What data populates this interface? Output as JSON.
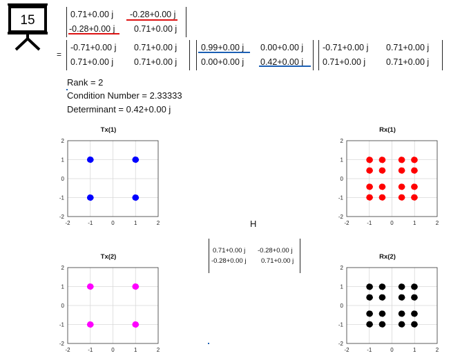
{
  "slide_number": "15",
  "equals": "=",
  "matrix_h": {
    "r1": [
      "0.71+0.00 j",
      "-0.28+0.00 j"
    ],
    "r2": [
      "-0.28+0.00 j",
      "0.71+0.00 j"
    ]
  },
  "matrix_u": {
    "r1": [
      "-0.71+0.00 j",
      "0.71+0.00 j"
    ],
    "r2": [
      "0.71+0.00 j",
      "0.71+0.00 j"
    ]
  },
  "matrix_s": {
    "r1": [
      "0.99+0.00 j",
      "0.00+0.00 j"
    ],
    "r2": [
      "0.00+0.00 j",
      "0.42+0.00 j"
    ]
  },
  "matrix_v": {
    "r1": [
      "-0.71+0.00 j",
      "0.71+0.00 j"
    ],
    "r2": [
      "0.71+0.00 j",
      "0.71+0.00 j"
    ]
  },
  "stats": {
    "rank": "Rank = 2",
    "condition": "Condition Number = 2.33333",
    "determinant": "Determinant = 0.42+0.00 j"
  },
  "channel_label": "H",
  "matrix_h_small": {
    "r1": [
      "0.71+0.00 j",
      "-0.28+0.00 j"
    ],
    "r2": [
      "-0.28+0.00 j",
      "0.71+0.00 j"
    ]
  },
  "colors": {
    "tx1": "#0000ff",
    "rx1": "#ff0000",
    "tx2": "#ff00ff",
    "rx2": "#000000",
    "underline_red": "#dd1111",
    "underline_blue": "#1a5fb4"
  },
  "chart_data": [
    {
      "type": "scatter",
      "title": "Tx(1)",
      "xlim": [
        -2,
        2
      ],
      "ylim": [
        -2,
        2
      ],
      "xticks": [
        "-2",
        "-1",
        "0",
        "1",
        "2"
      ],
      "yticks": [
        "2",
        "1",
        "0",
        "-1",
        "-2"
      ],
      "grid": true,
      "points": [
        [
          -1,
          1
        ],
        [
          1,
          1
        ],
        [
          -1,
          -1
        ],
        [
          1,
          -1
        ]
      ]
    },
    {
      "type": "scatter",
      "title": "Rx(1)",
      "xlim": [
        -2,
        2
      ],
      "ylim": [
        -2,
        2
      ],
      "xticks": [
        "-2",
        "-1",
        "0",
        "1",
        "2"
      ],
      "yticks": [
        "2",
        "1",
        "0",
        "-1",
        "-2"
      ],
      "grid": true,
      "points": [
        [
          -0.99,
          0.99
        ],
        [
          -0.43,
          0.99
        ],
        [
          0.43,
          0.99
        ],
        [
          0.99,
          0.99
        ],
        [
          -0.99,
          0.43
        ],
        [
          -0.43,
          0.43
        ],
        [
          0.43,
          0.43
        ],
        [
          0.99,
          0.43
        ],
        [
          -0.99,
          -0.43
        ],
        [
          -0.43,
          -0.43
        ],
        [
          0.43,
          -0.43
        ],
        [
          0.99,
          -0.43
        ],
        [
          -0.99,
          -0.99
        ],
        [
          -0.43,
          -0.99
        ],
        [
          0.43,
          -0.99
        ],
        [
          0.99,
          -0.99
        ]
      ]
    },
    {
      "type": "scatter",
      "title": "Tx(2)",
      "xlim": [
        -2,
        2
      ],
      "ylim": [
        -2,
        2
      ],
      "xticks": [
        "-2",
        "-1",
        "0",
        "1",
        "2"
      ],
      "yticks": [
        "2",
        "1",
        "0",
        "-1",
        "-2"
      ],
      "grid": true,
      "points": [
        [
          -1,
          1
        ],
        [
          1,
          1
        ],
        [
          -1,
          -1
        ],
        [
          1,
          -1
        ]
      ]
    },
    {
      "type": "scatter",
      "title": "Rx(2)",
      "xlim": [
        -2,
        2
      ],
      "ylim": [
        -2,
        2
      ],
      "xticks": [
        "-2",
        "-1",
        "0",
        "1",
        "2"
      ],
      "yticks": [
        "2",
        "1",
        "0",
        "-1",
        "-2"
      ],
      "grid": true,
      "points": [
        [
          -0.99,
          0.99
        ],
        [
          -0.43,
          0.99
        ],
        [
          0.43,
          0.99
        ],
        [
          0.99,
          0.99
        ],
        [
          -0.99,
          0.43
        ],
        [
          -0.43,
          0.43
        ],
        [
          0.43,
          0.43
        ],
        [
          0.99,
          0.43
        ],
        [
          -0.99,
          -0.43
        ],
        [
          -0.43,
          -0.43
        ],
        [
          0.43,
          -0.43
        ],
        [
          0.99,
          -0.43
        ],
        [
          -0.99,
          -0.99
        ],
        [
          -0.43,
          -0.99
        ],
        [
          0.43,
          -0.99
        ],
        [
          0.99,
          -0.99
        ]
      ]
    }
  ]
}
